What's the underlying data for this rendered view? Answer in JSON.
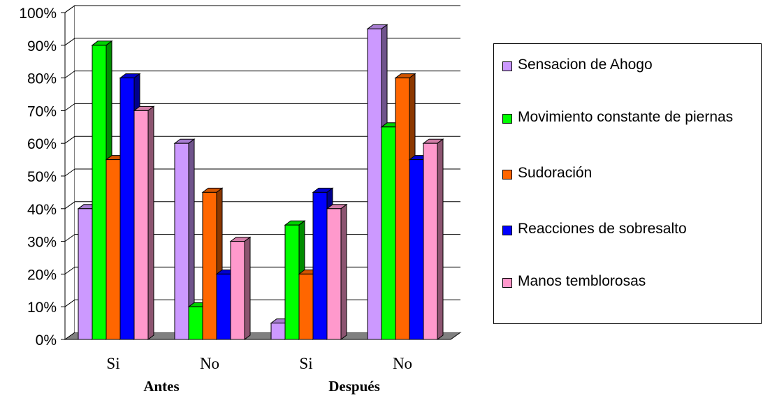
{
  "chart_data": {
    "type": "bar",
    "title": "",
    "xlabel": "",
    "ylabel": "",
    "ylim": [
      0,
      100
    ],
    "y_ticks": [
      "0%",
      "10%",
      "20%",
      "30%",
      "40%",
      "50%",
      "60%",
      "70%",
      "80%",
      "90%",
      "100%"
    ],
    "categories": [
      "Si",
      "No",
      "Si",
      "No"
    ],
    "groups": [
      {
        "label": "Antes",
        "categories": [
          "Si",
          "No"
        ]
      },
      {
        "label": "Después",
        "categories": [
          "Si",
          "No"
        ]
      }
    ],
    "series": [
      {
        "name": "Sensacion de Ahogo",
        "color": "#cc99ff",
        "values": [
          40,
          60,
          5,
          95
        ]
      },
      {
        "name": "Movimiento constante de piernas",
        "color": "#00ff00",
        "values": [
          90,
          10,
          35,
          65
        ]
      },
      {
        "name": "Sudoración",
        "color": "#ff6600",
        "values": [
          55,
          45,
          20,
          80
        ]
      },
      {
        "name": "Reacciones de sobresalto",
        "color": "#0000ff",
        "values": [
          80,
          20,
          45,
          55
        ]
      },
      {
        "name": "Manos temblorosas",
        "color": "#ff99cc",
        "values": [
          70,
          30,
          40,
          60
        ]
      }
    ],
    "grid": true,
    "legend_position": "right"
  }
}
